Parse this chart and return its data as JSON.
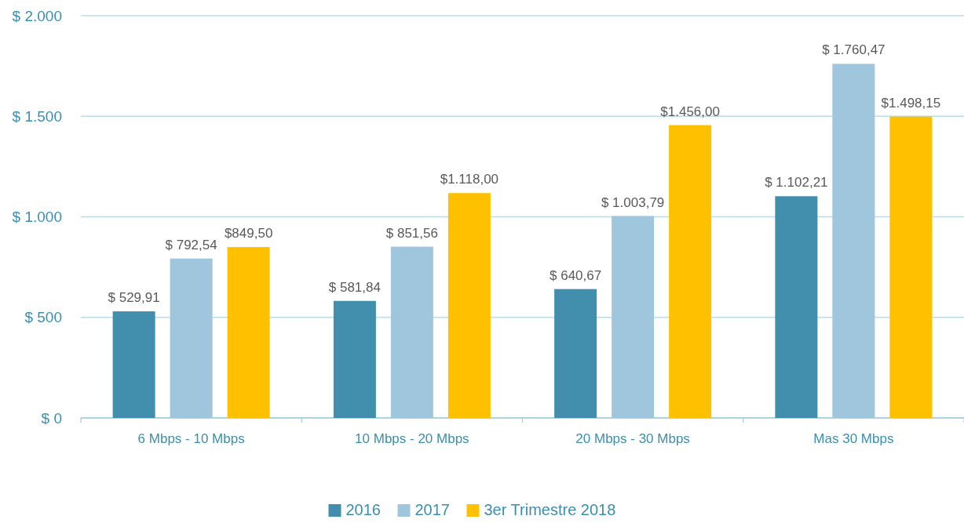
{
  "chart_data": {
    "type": "bar",
    "categories": [
      "6 Mbps - 10 Mbps",
      "10 Mbps - 20 Mbps",
      "20 Mbps - 30 Mbps",
      "Mas 30 Mbps"
    ],
    "series": [
      {
        "name": "2016",
        "color": "#418ead",
        "values": [
          529.91,
          581.84,
          640.67,
          1102.21
        ],
        "value_labels": [
          "$ 529,91",
          "$ 581,84",
          "$ 640,67",
          "$ 1.102,21"
        ]
      },
      {
        "name": "2017",
        "color": "#9fc6dc",
        "values": [
          792.54,
          851.56,
          1003.79,
          1760.47
        ],
        "value_labels": [
          "$ 792,54",
          "$ 851,56",
          "$ 1.003,79",
          "$ 1.760,47"
        ]
      },
      {
        "name": "3er Trimestre 2018",
        "color": "#ffc000",
        "values": [
          849.5,
          1118,
          1456,
          1498.15
        ],
        "value_labels": [
          "$849,50",
          "$1.118,00",
          "$1.456,00",
          "$1.498,15"
        ]
      }
    ],
    "ylim": [
      0,
      2000
    ],
    "yticks": [
      {
        "value": 0,
        "label": "$ 0"
      },
      {
        "value": 500,
        "label": "$ 500"
      },
      {
        "value": 1000,
        "label": "$ 1.000"
      },
      {
        "value": 1500,
        "label": "$ 1.500"
      },
      {
        "value": 2000,
        "label": "$ 2.000"
      }
    ],
    "grid": "y",
    "legend": "bottom"
  }
}
